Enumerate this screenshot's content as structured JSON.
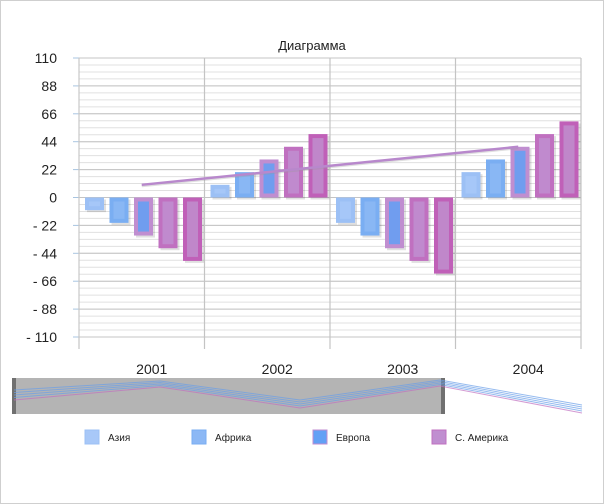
{
  "chart_data": {
    "type": "bar",
    "title": "Диаграмма",
    "categories": [
      "2001",
      "2002",
      "2003",
      "2004"
    ],
    "ylim": [
      -110,
      110
    ],
    "yticks": [
      110,
      88,
      66,
      44,
      22,
      0,
      -22,
      -44,
      -66,
      -88,
      -110
    ],
    "ytick_labels": [
      "110",
      "88",
      "66",
      "44",
      "22",
      "0",
      "- 22",
      "- 44",
      "- 66",
      "- 88",
      "- 110"
    ],
    "grid": true,
    "legend_position": "bottom",
    "series": [
      {
        "name": "Азия",
        "values": [
          -10,
          10,
          -20,
          20
        ],
        "fill": "#a8c8f8",
        "border": "#9cc0f5"
      },
      {
        "name": "Африка",
        "values": [
          -20,
          20,
          -30,
          30
        ],
        "fill": "#8cb8f5",
        "border": "#7aaef2"
      },
      {
        "name": "Европа",
        "values": [
          -30,
          30,
          -40,
          40
        ],
        "fill": "#62a0f5",
        "border": "#c08ed0"
      },
      {
        "name": "С. Америка",
        "values": [
          -40,
          40,
          -50,
          50
        ],
        "fill": "#c08ed0",
        "border": "#c070c0"
      },
      {
        "values": [
          -50,
          50,
          -60,
          60
        ],
        "fill": "#c08ecc",
        "border": "#c060b8"
      }
    ],
    "trendline": {
      "from": [
        0,
        10
      ],
      "to": [
        3,
        40
      ],
      "color": "#b888cc"
    }
  }
}
